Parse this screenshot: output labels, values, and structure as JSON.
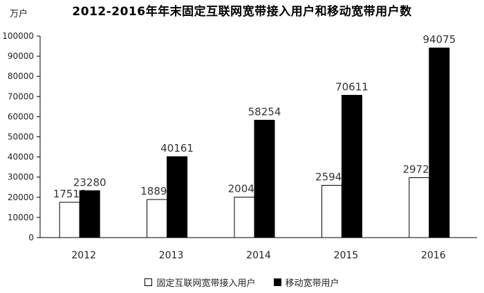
{
  "chart_data": {
    "type": "bar",
    "title": "2012-2016年年末固定互联网宽带接入用户和移动宽带用户数",
    "ylabel": "万户",
    "categories": [
      "2012",
      "2013",
      "2014",
      "2015",
      "2016"
    ],
    "ylim": [
      0,
      100000
    ],
    "yticks": [
      0,
      10000,
      20000,
      30000,
      40000,
      50000,
      60000,
      70000,
      80000,
      90000,
      100000
    ],
    "series": [
      {
        "name": "固定互联网宽带接入用户",
        "values": [
          17518,
          18891,
          20048,
          25947,
          29721
        ],
        "color": "#ffffff"
      },
      {
        "name": "移动宽带用户",
        "values": [
          23280,
          40161,
          58254,
          70611,
          94075
        ],
        "color": "#000000"
      }
    ],
    "legend": "bottom",
    "grid": false
  }
}
